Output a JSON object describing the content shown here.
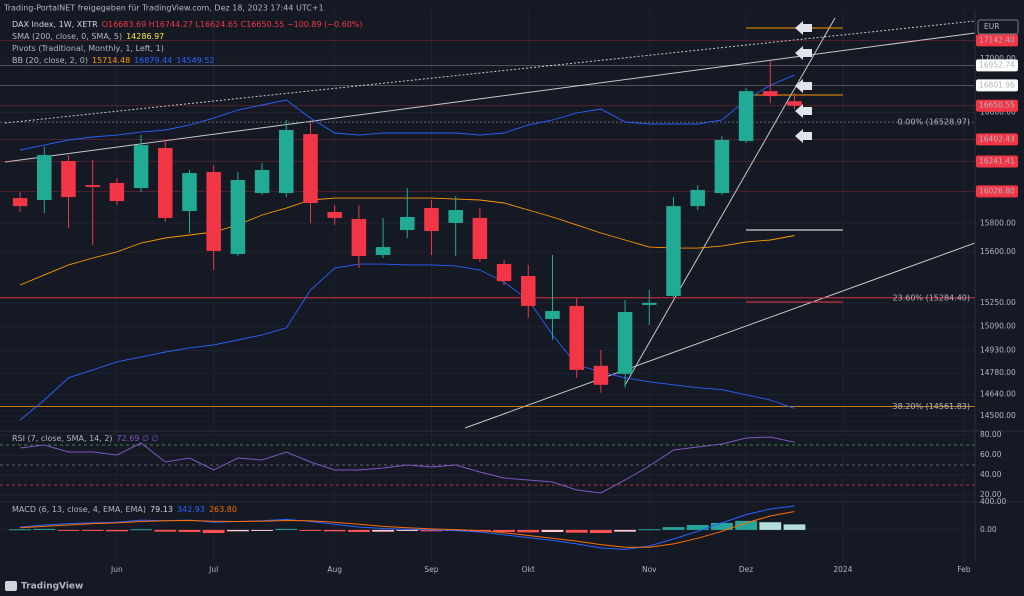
{
  "header": "Trading-PortalNET freigegeben für TradingView.com, Dez 18, 2023 17:44 UTC+1",
  "footer": "TradingView",
  "legend": [
    {
      "label": "SMA (200, close, 0, SMA, 5)",
      "value_texts": [
        "14286.97"
      ],
      "colors": [
        "#ffeb3b"
      ]
    },
    {
      "label": "Pivots (Traditional, Monthly, 1, Left, 1)",
      "value_texts": [],
      "colors": []
    },
    {
      "label": "BB (20, close, 2, 0)",
      "value_texts": [
        "15714.48",
        "16879.44",
        "14549.52"
      ],
      "colors": [
        "#ff9800",
        "#2962ff",
        "#2962ff"
      ]
    }
  ],
  "chart_data": [
    {
      "type": "candlestick",
      "title": "DAX Index, 1W, XETR",
      "ohlc_text": "O16683.69 H16744.27 L16624.65 C16650.55 −100.89 (−0.60%)",
      "currency": "EUR",
      "log_scale": true,
      "grid": true,
      "up_color": "#22ab94",
      "down_color": "#f23645",
      "ylim": [
        14410,
        17376
      ],
      "yticks": [
        {
          "value": 17000,
          "label": "17000.00"
        },
        {
          "value": 16600,
          "label": "16600.00"
        },
        {
          "value": 15800,
          "label": "15800.00"
        },
        {
          "value": 15600,
          "label": "15600.00"
        },
        {
          "value": 15250,
          "label": "15250.00"
        },
        {
          "value": 15090,
          "label": "15090.00"
        },
        {
          "value": 14930,
          "label": "14930.00"
        },
        {
          "value": 14780,
          "label": "14780.00"
        },
        {
          "value": 14640,
          "label": "14640.00"
        },
        {
          "value": 14500,
          "label": "14500.00"
        }
      ],
      "xlim": [
        -0.83,
        39.46
      ],
      "xticks": [
        {
          "value": 4,
          "label": "Jun"
        },
        {
          "value": 8,
          "label": "Jul"
        },
        {
          "value": 13,
          "label": "Aug"
        },
        {
          "value": 17,
          "label": "Sep"
        },
        {
          "value": 21,
          "label": "Okt"
        },
        {
          "value": 26,
          "label": "Nov"
        },
        {
          "value": 30,
          "label": "Dez"
        },
        {
          "value": 34,
          "label": "2024"
        },
        {
          "value": 39,
          "label": "Feb"
        }
      ],
      "open": [
        15979,
        15965,
        16245,
        16072,
        16087,
        16051,
        16339,
        15887,
        16166,
        15586,
        16015,
        16015,
        16441,
        15880,
        15831,
        15579,
        15753,
        15908,
        15803,
        15838,
        15516,
        15434,
        15141,
        15229,
        14828,
        14775,
        15236,
        15297,
        15922,
        16015,
        16391,
        16759,
        16683.69
      ],
      "high": [
        16022,
        16347,
        16288,
        16252,
        16122,
        16434,
        16398,
        16180,
        16216,
        16166,
        16230,
        16545,
        16530,
        15929,
        15929,
        15838,
        16051,
        15965,
        15993,
        15908,
        15544,
        15510,
        15579,
        15284,
        14933,
        15270,
        15338,
        15986,
        16072,
        16427,
        16781,
        16985,
        16744.27
      ],
      "low": [
        15880,
        15873,
        15767,
        15648,
        15929,
        16022,
        15810,
        15732,
        15475,
        15572,
        16001,
        15986,
        15803,
        15789,
        15489,
        15558,
        15697,
        15579,
        15572,
        15530,
        15372,
        15148,
        15000,
        14749,
        14651,
        14684,
        15101,
        15284,
        15894,
        16001,
        16376,
        16670,
        16624.65
      ],
      "close": [
        15922,
        16288,
        15986,
        16058,
        15958,
        16361,
        15838,
        16158,
        15607,
        16108,
        16180,
        16471,
        15944,
        15838,
        15572,
        15634,
        15845,
        15746,
        15894,
        15551,
        15399,
        15229,
        15195,
        14801,
        14703,
        15188,
        15250,
        15922,
        16037,
        16398,
        16759,
        16722,
        16650.55
      ],
      "bollinger": {
        "upper_color": "#2962ff",
        "basis_color": "#ff9800",
        "lower_color": "#2962ff",
        "upper": [
          16325,
          16361,
          16398,
          16420,
          16434,
          16456,
          16471,
          16508,
          16559,
          16619,
          16656,
          16693,
          16559,
          16449,
          16434,
          16449,
          16449,
          16449,
          16449,
          16434,
          16449,
          16508,
          16545,
          16597,
          16626,
          16530,
          16515,
          16515,
          16515,
          16545,
          16693,
          16804,
          16879.44
        ],
        "basis": [
          15372,
          15441,
          15510,
          15558,
          15600,
          15662,
          15697,
          15718,
          15739,
          15789,
          15859,
          15908,
          15965,
          15979,
          15979,
          15979,
          15979,
          15979,
          15972,
          15965,
          15944,
          15894,
          15845,
          15789,
          15732,
          15683,
          15634,
          15627,
          15627,
          15641,
          15669,
          15683,
          15714.48
        ],
        "lower": [
          14474,
          14604,
          14749,
          14801,
          14854,
          14887,
          14920,
          14947,
          14967,
          15000,
          15034,
          15081,
          15338,
          15489,
          15516,
          15516,
          15510,
          15510,
          15503,
          15475,
          15392,
          15270,
          15034,
          14834,
          14788,
          14749,
          14723,
          14703,
          14684,
          14671,
          14638,
          14604,
          14549.52
        ]
      },
      "levels": [
        {
          "value": 17142.4,
          "label": "17142.40",
          "color": "#f23645",
          "text_color": "#ffffff"
        },
        {
          "value": 16952.74,
          "label": "16952.74",
          "color": "#ffffff",
          "text_color": "#131722"
        },
        {
          "value": 16801.96,
          "label": "16801.96",
          "color": "#ffffff",
          "text_color": "#131722"
        },
        {
          "value": 16650.55,
          "label": "16650.55",
          "color": "#f23645",
          "text_color": "#ffffff"
        },
        {
          "value": 16402.43,
          "label": "16402.43",
          "color": "#f23645",
          "text_color": "#ffffff"
        },
        {
          "value": 16241.41,
          "label": "16241.41",
          "color": "#f23645",
          "text_color": "#ffffff"
        },
        {
          "value": 16026.8,
          "label": "16026.80",
          "color": "#f23645",
          "text_color": "#ffffff"
        }
      ],
      "pivot_lines": [
        {
          "value": 17237,
          "color": "#ff9800"
        },
        {
          "value": 16730,
          "color": "#ff9800"
        },
        {
          "value": 15753,
          "color": "#ffffff"
        },
        {
          "value": 15256,
          "color": "#f23645"
        }
      ],
      "fib": [
        {
          "value": 16528.97,
          "label": "0.00% (16528.97)",
          "color": "#787b86"
        },
        {
          "value": 15284.4,
          "label": "23.60% (15284.40)",
          "color": "#f23645"
        },
        {
          "value": 14561.83,
          "label": "38.20% (14561.83)",
          "color": "#ff9800"
        }
      ]
    },
    {
      "type": "rsi",
      "title": "RSI (7, close, SMA, 14, 2)",
      "value_text": "72.69 ∅ ∅",
      "color": "#7e57c2",
      "ylim": [
        12,
        83
      ],
      "yticks": [
        {
          "value": 80,
          "label": "80.00"
        },
        {
          "value": 60,
          "label": "60.00"
        },
        {
          "value": 40,
          "label": "40.00"
        },
        {
          "value": 20,
          "label": "20.00"
        }
      ],
      "bands": [
        {
          "value": 70,
          "color": "#4caf50"
        },
        {
          "value": 50,
          "color": "#787b86"
        },
        {
          "value": 30,
          "color": "#f23645"
        }
      ],
      "values": [
        67,
        70,
        63,
        63,
        60,
        72,
        53,
        57,
        45,
        57,
        55,
        63,
        53,
        45,
        45,
        47,
        50,
        48,
        50,
        43,
        37,
        35,
        33,
        25,
        22,
        35,
        49,
        65,
        68,
        71,
        77,
        78,
        72.69
      ]
    },
    {
      "type": "macd",
      "title": "MACD (6, 13, close, 4, EMA, EMA)",
      "value_texts": [
        "79.13",
        "342.93",
        "263.80"
      ],
      "value_colors": [
        "#d1d4dc",
        "#2962ff",
        "#ff6d00"
      ],
      "ylim": [
        -460,
        400
      ],
      "yticks": [
        {
          "value": 400,
          "label": "400.00"
        },
        {
          "value": 0,
          "label": "0.00"
        }
      ],
      "hist_colors": {
        "up_rising": "#26a69a",
        "up_falling": "#b2dfdb",
        "down_falling": "#ff5252",
        "down_rising": "#ffcdd2"
      },
      "histogram": [
        10,
        15,
        -10,
        -15,
        -20,
        10,
        -25,
        -30,
        -45,
        -20,
        -10,
        15,
        -5,
        -20,
        -30,
        -25,
        -15,
        -20,
        -15,
        -25,
        -30,
        -35,
        -30,
        -40,
        -45,
        -25,
        10,
        40,
        70,
        100,
        130,
        110,
        79.13
      ],
      "macd_color": "#2962ff",
      "macd": [
        40,
        70,
        90,
        100,
        110,
        140,
        130,
        140,
        110,
        120,
        130,
        150,
        120,
        80,
        40,
        20,
        10,
        0,
        -10,
        -30,
        -70,
        -110,
        -150,
        -200,
        -260,
        -280,
        -230,
        -130,
        -20,
        100,
        220,
        300,
        342.93
      ],
      "signal_color": "#ff6d00",
      "signal": [
        30,
        50,
        70,
        90,
        100,
        120,
        130,
        135,
        125,
        120,
        125,
        135,
        130,
        110,
        80,
        50,
        30,
        15,
        5,
        -10,
        -40,
        -80,
        -120,
        -160,
        -210,
        -250,
        -250,
        -200,
        -120,
        -20,
        100,
        200,
        263.8
      ]
    }
  ]
}
